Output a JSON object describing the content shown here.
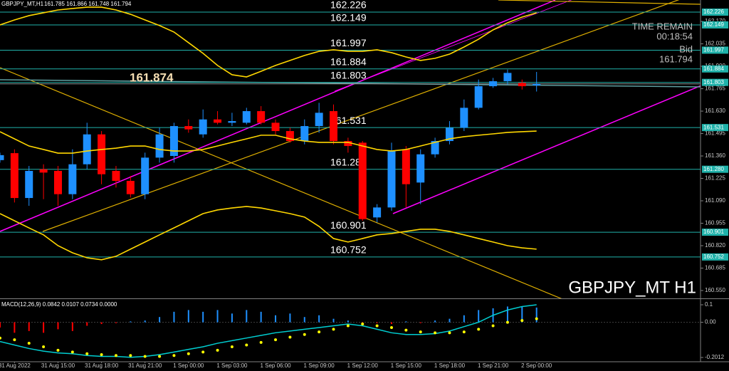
{
  "chart_data": [
    {
      "type": "candlestick",
      "title": "GBPJPY_MT,H1",
      "ohlc_header": "161.785 161.866 161.748 161.794",
      "watermark": "GBPJPY_MT H1",
      "time_remain_label": "TIME REMAIN",
      "time_remain": "00:18:54",
      "bid_label": "Bid",
      "bid": 161.794,
      "annotation": 161.874,
      "categories": [
        null,
        "31 Aug 2022",
        null,
        null,
        "31 Aug 15:00",
        null,
        null,
        "31 Aug 18:00",
        null,
        null,
        "31 Aug 21:00",
        null,
        null,
        "1 Sep 00:00",
        null,
        null,
        "1 Sep 03:00",
        null,
        null,
        "1 Sep 06:00",
        null,
        null,
        "1 Sep 09:00",
        null,
        null,
        "1 Sep 12:00",
        null,
        null,
        "1 Sep 15:00",
        null,
        null,
        "1 Sep 18:00",
        null,
        null,
        "1 Sep 21:00",
        null,
        null,
        "2 Sep 00:00"
      ],
      "ylim": [
        160.507,
        162.299
      ],
      "yticks": [
        {
          "value": 162.17,
          "label": "162.170"
        },
        162.035,
        {
          "value": 161.9,
          "label": "161.900"
        },
        161.765,
        {
          "value": 161.63,
          "label": "161.630"
        },
        161.495,
        {
          "value": 161.36,
          "label": "161.360"
        },
        161.225,
        {
          "value": 161.09,
          "label": "161.090"
        },
        160.955,
        {
          "value": 160.82,
          "label": "160.820"
        },
        160.685,
        {
          "value": 160.55,
          "label": "160.550"
        }
      ],
      "grid": false,
      "level_color": "#20b2aa",
      "levels": [
        162.226,
        162.149,
        161.997,
        161.884,
        161.803,
        161.531,
        {
          "value": 161.28,
          "label": "161.280"
        },
        160.901,
        160.752
      ],
      "series": [
        {
          "type": "candlestick",
          "up_color": "#1e90ff",
          "down_color": "#ff0000",
          "open": [
            161.335,
            161.377,
            161.107,
            161.28,
            161.27,
            161.13,
            161.31,
            161.49,
            161.27,
            161.21,
            161.13,
            161.35,
            161.36,
            161.54,
            161.49,
            161.58,
            161.56,
            161.56,
            161.63,
            161.56,
            161.51,
            161.45,
            161.54,
            161.63,
            161.45,
            161.44,
            160.99,
            161.05,
            161.4,
            161.2,
            161.37,
            161.45,
            161.53,
            161.65,
            161.78,
            161.81,
            161.8,
            161.785
          ],
          "high": [
            161.38,
            161.4,
            161.3,
            161.31,
            161.3,
            161.4,
            161.56,
            161.51,
            161.3,
            161.24,
            161.38,
            161.53,
            161.56,
            161.58,
            161.64,
            161.63,
            161.62,
            161.65,
            161.66,
            161.58,
            161.53,
            161.58,
            161.68,
            161.67,
            161.47,
            161.45,
            161.07,
            161.44,
            161.42,
            161.4,
            161.47,
            161.57,
            161.7,
            161.82,
            161.83,
            161.88,
            161.82,
            161.866
          ],
          "low": [
            161.32,
            161.08,
            161.06,
            161.1,
            161.06,
            161.1,
            161.28,
            161.19,
            161.17,
            161.11,
            161.1,
            161.32,
            161.32,
            161.5,
            161.47,
            161.55,
            161.54,
            161.55,
            161.55,
            161.49,
            161.44,
            161.43,
            161.5,
            161.43,
            161.38,
            160.97,
            160.96,
            161.03,
            161.05,
            161.07,
            161.35,
            161.43,
            161.51,
            161.64,
            161.77,
            161.79,
            161.76,
            161.748
          ],
          "close": [
            161.365,
            161.107,
            161.27,
            161.26,
            161.13,
            161.31,
            161.49,
            161.25,
            161.21,
            161.13,
            161.35,
            161.49,
            161.54,
            161.52,
            161.58,
            161.56,
            161.57,
            161.63,
            161.56,
            161.51,
            161.45,
            161.54,
            161.62,
            161.45,
            161.42,
            160.98,
            161.05,
            161.39,
            161.19,
            161.37,
            161.45,
            161.53,
            161.65,
            161.78,
            161.81,
            161.86,
            161.78,
            161.794
          ]
        },
        {
          "type": "line",
          "color": "#ffd700",
          "values": [
            162.149,
            162.179,
            162.205,
            162.222,
            162.239,
            162.248,
            162.256,
            162.256,
            162.239,
            162.213,
            162.179,
            162.145,
            162.106,
            162.042,
            161.978,
            161.905,
            161.849,
            161.836,
            161.87,
            161.905,
            161.935,
            161.965,
            161.99,
            161.999,
            161.99,
            161.99,
            161.999,
            161.982,
            161.956,
            161.935,
            161.948,
            161.973,
            162.016,
            162.063,
            162.119,
            162.162,
            162.196,
            162.222
          ]
        },
        {
          "type": "line",
          "color": "#ffd700",
          "values": [
            161.506,
            161.463,
            161.42,
            161.399,
            161.377,
            161.377,
            161.39,
            161.399,
            161.407,
            161.42,
            161.42,
            161.399,
            161.39,
            161.39,
            161.399,
            161.42,
            161.442,
            161.463,
            161.485,
            161.485,
            161.463,
            161.45,
            161.442,
            161.442,
            161.442,
            161.42,
            161.399,
            161.39,
            161.399,
            161.42,
            161.442,
            161.463,
            161.476,
            161.485,
            161.493,
            161.502,
            161.506,
            161.51
          ]
        },
        {
          "type": "line",
          "color": "#ffd700",
          "values": [
            161.013,
            160.97,
            160.927,
            160.885,
            160.82,
            160.777,
            160.747,
            160.735,
            160.756,
            160.799,
            160.842,
            160.885,
            160.927,
            160.97,
            161.013,
            161.035,
            161.047,
            161.056,
            161.047,
            161.03,
            161.013,
            160.992,
            160.936,
            160.863,
            160.842,
            160.863,
            160.885,
            160.893,
            160.906,
            160.919,
            160.919,
            160.906,
            160.885,
            160.863,
            160.842,
            160.82,
            160.807,
            160.799
          ]
        }
      ]
    },
    {
      "type": "macd",
      "title": "MACD(12,26,9) 0.0842 0.0107 0.0734 0.0000",
      "ylim": [
        -0.2215,
        0.1285
      ],
      "yticks": [
        0.1,
        {
          "value": 0,
          "label": "0.00"
        },
        -0.2012
      ],
      "up_color": "#1e90ff",
      "down_color": "#ff0000",
      "histogram": [
        -0.03,
        -0.06,
        -0.05,
        -0.06,
        -0.04,
        -0.05,
        -0.02,
        -0.01,
        -0.005,
        0.005,
        0.01,
        0.03,
        0.06,
        0.07,
        0.06,
        0.07,
        0.05,
        0.07,
        0.06,
        0.04,
        0.05,
        0.03,
        0.04,
        0.02,
        0.01,
        -0.01,
        -0.005,
        -0.01,
        0.005,
        -0.005,
        0.01,
        0.02,
        0.04,
        0.07,
        0.08,
        0.09,
        0.09,
        0.0842
      ],
      "line_color": "#00ced1",
      "line": [
        -0.11,
        -0.13,
        -0.15,
        -0.165,
        -0.175,
        -0.18,
        -0.19,
        -0.195,
        -0.195,
        -0.2,
        -0.195,
        -0.185,
        -0.17,
        -0.155,
        -0.14,
        -0.12,
        -0.105,
        -0.09,
        -0.075,
        -0.06,
        -0.05,
        -0.04,
        -0.03,
        -0.02,
        -0.01,
        -0.02,
        -0.04,
        -0.06,
        -0.07,
        -0.07,
        -0.065,
        -0.05,
        -0.025,
        0.0,
        0.04,
        0.07,
        0.09,
        0.1
      ],
      "signal_color": "#ffff00",
      "signal": [
        -0.09,
        -0.1,
        -0.12,
        -0.14,
        -0.16,
        -0.17,
        -0.18,
        -0.185,
        -0.19,
        -0.19,
        -0.195,
        -0.195,
        -0.19,
        -0.18,
        -0.17,
        -0.16,
        -0.14,
        -0.13,
        -0.115,
        -0.1,
        -0.085,
        -0.07,
        -0.055,
        -0.04,
        -0.02,
        -0.01,
        -0.02,
        -0.03,
        -0.045,
        -0.055,
        -0.06,
        -0.06,
        -0.055,
        -0.04,
        -0.02,
        0.0,
        0.01,
        0.02
      ]
    }
  ]
}
